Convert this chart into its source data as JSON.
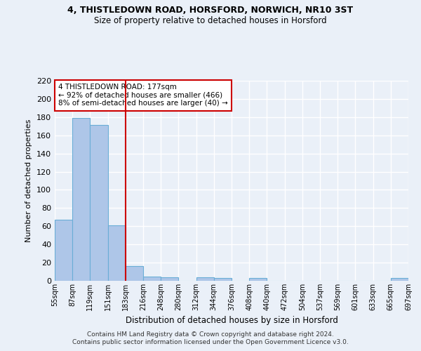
{
  "title1": "4, THISTLEDOWN ROAD, HORSFORD, NORWICH, NR10 3ST",
  "title2": "Size of property relative to detached houses in Horsford",
  "xlabel": "Distribution of detached houses by size in Horsford",
  "ylabel": "Number of detached properties",
  "footer1": "Contains HM Land Registry data © Crown copyright and database right 2024.",
  "footer2": "Contains public sector information licensed under the Open Government Licence v3.0.",
  "annotation_line1": "4 THISTLEDOWN ROAD: 177sqm",
  "annotation_line2": "← 92% of detached houses are smaller (466)",
  "annotation_line3": "8% of semi-detached houses are larger (40) →",
  "bin_labels": [
    "55sqm",
    "87sqm",
    "119sqm",
    "151sqm",
    "183sqm",
    "216sqm",
    "248sqm",
    "280sqm",
    "312sqm",
    "344sqm",
    "376sqm",
    "408sqm",
    "440sqm",
    "472sqm",
    "504sqm",
    "537sqm",
    "569sqm",
    "601sqm",
    "633sqm",
    "665sqm",
    "697sqm"
  ],
  "bar_heights": [
    67,
    179,
    171,
    61,
    16,
    5,
    4,
    0,
    4,
    3,
    0,
    3,
    0,
    0,
    0,
    0,
    0,
    0,
    0,
    3
  ],
  "bar_color": "#aec6e8",
  "bar_edge_color": "#6aaed6",
  "red_line_x": 3.5,
  "red_line_color": "#cc0000",
  "background_color": "#eaf0f8",
  "plot_bg_color": "#eaf0f8",
  "grid_color": "#ffffff",
  "annotation_box_color": "#ffffff",
  "annotation_box_edge": "#cc0000",
  "ylim": [
    0,
    220
  ],
  "yticks": [
    0,
    20,
    40,
    60,
    80,
    100,
    120,
    140,
    160,
    180,
    200,
    220
  ]
}
